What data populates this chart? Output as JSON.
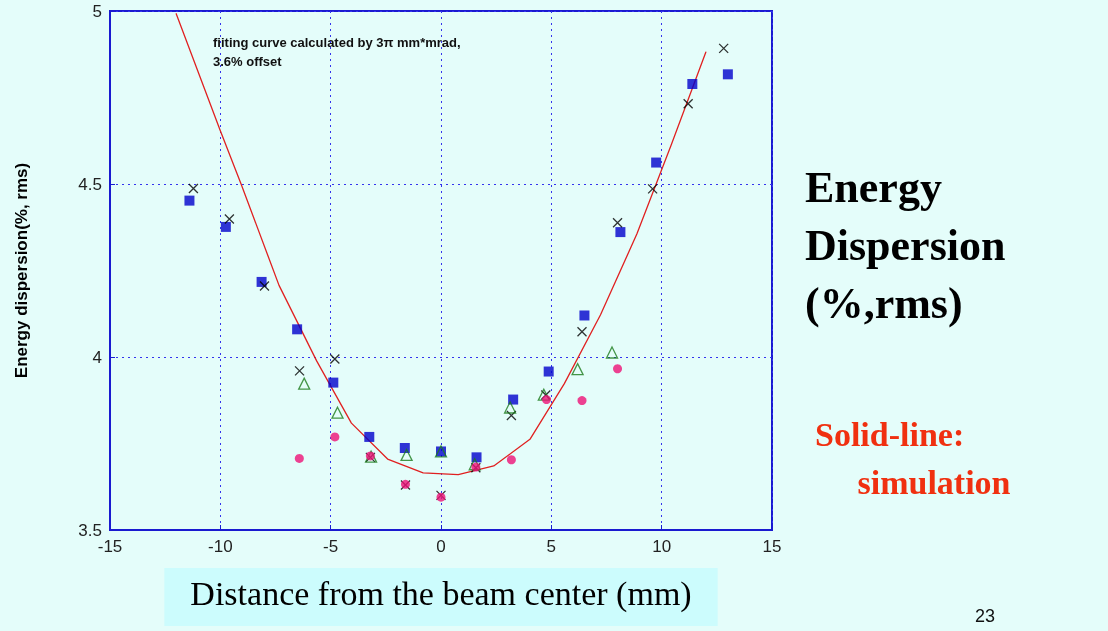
{
  "chart_data": {
    "type": "scatter",
    "xlabel": "Distance from the beam center (mm)",
    "ylabel": "Energy dispersion(%, rms)",
    "annotations": [
      "fiiting curve calculated by 3π mm*mrad,\n3.6% offset",
      "Energy\nDispersion\n(%,rms)",
      "Solid-line:\n     simulation",
      "23"
    ],
    "xlim": [
      -15,
      15
    ],
    "xticks": [
      -15,
      -10,
      -5,
      0,
      5,
      10,
      15
    ],
    "ylim": [
      3.5,
      5
    ],
    "yticks": [
      3.5,
      4,
      4.5,
      5
    ],
    "grid": true,
    "line_style": "solid",
    "series": [
      {
        "type": "scatter",
        "color": "#0000cc",
        "marker": "square",
        "x": [
          -11.4,
          -9.75,
          -8.13,
          -6.52,
          -4.88,
          -3.25,
          -1.64,
          0,
          1.61,
          3.27,
          4.88,
          6.5,
          8.13,
          9.75,
          11.39,
          13.0
        ],
        "values": [
          4.452,
          4.376,
          4.217,
          4.08,
          3.926,
          3.769,
          3.737,
          3.727,
          3.71,
          3.877,
          3.958,
          4.12,
          4.361,
          4.562,
          4.789,
          4.817
        ]
      },
      {
        "type": "scatter",
        "color": "#000000",
        "marker": "cross",
        "x": [
          -11.22,
          -9.59,
          -8.0,
          -6.41,
          -4.81,
          -3.2,
          -1.61,
          0,
          1.58,
          3.19,
          4.75,
          6.39,
          8.0,
          9.59,
          11.2,
          12.81
        ],
        "values": [
          4.487,
          4.399,
          4.205,
          3.96,
          3.994,
          3.71,
          3.63,
          3.6,
          3.68,
          3.831,
          3.89,
          4.073,
          4.388,
          4.486,
          4.732,
          4.892
        ]
      },
      {
        "type": "scatter",
        "color": "#1a7a1a",
        "marker": "triangle",
        "x": [
          -6.2,
          -4.69,
          -3.17,
          -1.56,
          0,
          1.53,
          3.13,
          4.66,
          6.19,
          7.75
        ],
        "values": [
          3.923,
          3.839,
          3.712,
          3.717,
          3.727,
          3.69,
          3.854,
          3.891,
          3.965,
          4.013
        ]
      },
      {
        "type": "scatter",
        "color": "#ee1177",
        "marker": "circle",
        "x": [
          -6.42,
          -4.81,
          -3.2,
          -1.61,
          0,
          1.58,
          3.19,
          4.78,
          6.39,
          8.0
        ],
        "values": [
          3.707,
          3.769,
          3.714,
          3.632,
          3.595,
          3.682,
          3.703,
          3.877,
          3.874,
          3.966
        ]
      },
      {
        "type": "line",
        "color": "#e02020",
        "marker": "none",
        "x": [
          -12.0,
          -10.0,
          -9.06,
          -7.34,
          -5.63,
          -4.06,
          -2.42,
          -0.81,
          0.78,
          2.39,
          4.03,
          5.59,
          7.23,
          8.88,
          10.44,
          12.0
        ],
        "values": [
          4.992,
          4.654,
          4.5,
          4.207,
          3.988,
          3.809,
          3.705,
          3.665,
          3.66,
          3.685,
          3.762,
          3.923,
          4.122,
          4.356,
          4.614,
          4.881
        ]
      }
    ]
  }
}
